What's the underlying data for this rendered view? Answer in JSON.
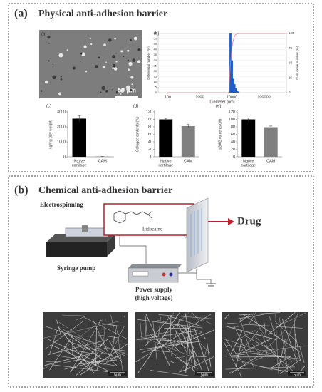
{
  "panel_a": {
    "label": "(a)",
    "title": "Physical anti-adhesion barrier",
    "sem": {
      "label": "(a)",
      "scale_bar": "50 μm"
    },
    "histogram": {
      "type": "bar",
      "label": "(b)",
      "x_label": "Diameter (nm)",
      "y_label": "Differential number (%)",
      "y2_label": "Cumulative number (%)",
      "log_x": true,
      "xlim": [
        50,
        500000
      ],
      "xticks": [
        100,
        1000,
        10000,
        100000
      ],
      "ylim": [
        0,
        55
      ],
      "yticks": [
        0,
        5,
        10,
        15,
        20,
        25,
        30,
        35,
        40,
        45,
        50,
        55
      ],
      "y2lim": [
        0,
        100
      ],
      "y2ticks": [
        0,
        25,
        50,
        75,
        100
      ],
      "x": [
        9000,
        10000,
        11000,
        12000,
        13000,
        14500,
        16000
      ],
      "values": [
        55,
        30,
        13,
        8,
        4,
        2,
        1
      ],
      "color": "#1f5fc8",
      "cumulative": {
        "x": [
          100,
          8000,
          9000,
          10000,
          11000,
          12000,
          13000,
          14500,
          16000,
          500000
        ],
        "values": [
          0,
          0,
          50,
          77,
          88,
          95,
          98,
          99,
          100,
          100
        ],
        "color": "#e07a8a"
      }
    },
    "charts": [
      {
        "type": "bar",
        "label": "(c)",
        "y_label": "ng/mg (dry weight)",
        "categories": [
          [
            "Native",
            "cartilage"
          ],
          [
            "CAM"
          ]
        ],
        "values": [
          2550,
          20
        ],
        "errors": [
          200,
          5
        ],
        "colors": [
          "#000000",
          "#808080"
        ],
        "ylim": [
          0,
          3000
        ],
        "yticks": [
          0,
          1000,
          2000,
          3000
        ]
      },
      {
        "type": "bar",
        "label": "(d)",
        "y_label": "Collagen contents (%)",
        "categories": [
          [
            "Native",
            "cartilage"
          ],
          [
            "CAM"
          ]
        ],
        "values": [
          100,
          82
        ],
        "errors": [
          3,
          4
        ],
        "colors": [
          "#000000",
          "#808080"
        ],
        "ylim": [
          0,
          120
        ],
        "yticks": [
          0,
          20,
          40,
          60,
          80,
          100,
          120
        ]
      },
      {
        "type": "bar",
        "label": "(e)",
        "y_label": "sGAG contents (%)",
        "categories": [
          [
            "Native",
            "cartilage"
          ],
          [
            "CAM"
          ]
        ],
        "values": [
          100,
          79
        ],
        "errors": [
          4,
          3
        ],
        "colors": [
          "#000000",
          "#808080"
        ],
        "ylim": [
          0,
          120
        ],
        "yticks": [
          0,
          20,
          40,
          60,
          80,
          100,
          120
        ]
      }
    ]
  },
  "panel_b": {
    "label": "(b)",
    "title": "Chemical anti-adhesion barrier",
    "electrospinning": "Electrospinning",
    "lidocaine": "Lidocaine",
    "drug": "Drug",
    "syringe_pump": "Syringe pump",
    "power_supply": [
      "Power supply",
      "(high voltage)"
    ],
    "sem_scale_bars": [
      "5μm",
      "5μm",
      "5μm"
    ]
  }
}
